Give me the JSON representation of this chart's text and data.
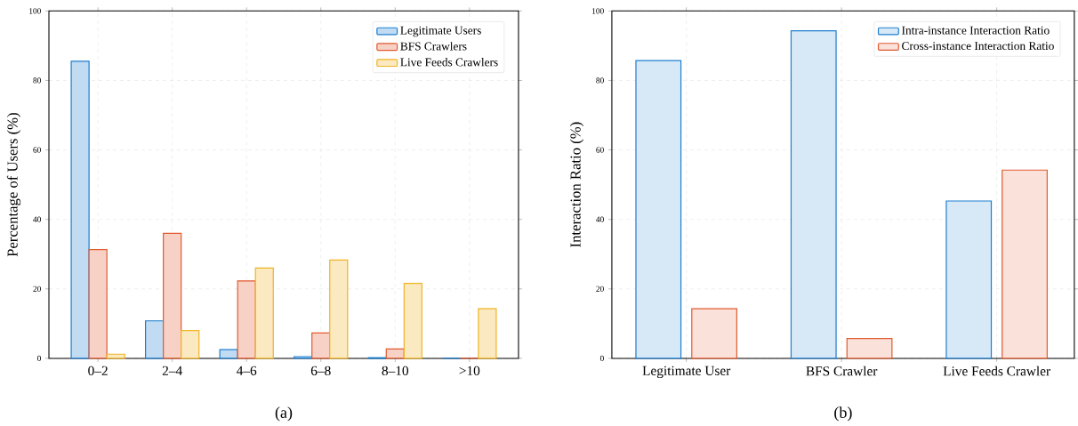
{
  "chart_data": [
    {
      "type": "bar",
      "categories": [
        "0–2",
        "2–4",
        "4–6",
        "6–8",
        "8–10",
        ">10"
      ],
      "ylabel": "Percentage of Users (%)",
      "ylim": [
        0,
        100
      ],
      "yticks": [
        0,
        20,
        40,
        60,
        80,
        100
      ],
      "grid": true,
      "legend": "top right",
      "annotations": [
        "(a)"
      ],
      "series": [
        {
          "name": "Legitimate Users",
          "color": "#1f7fcf",
          "values": [
            85.5,
            10.8,
            2.5,
            0.5,
            0.2,
            0
          ]
        },
        {
          "name": "BFS Crawlers",
          "color": "#e15b30",
          "values": [
            31.3,
            36.0,
            22.3,
            7.3,
            2.7,
            0
          ]
        },
        {
          "name": "Live Feeds Crawlers",
          "color": "#f0b323",
          "values": [
            1.2,
            8.0,
            26.0,
            28.3,
            21.6,
            14.3
          ]
        }
      ]
    },
    {
      "type": "bar",
      "categories": [
        "Legitimate User",
        "BFS Crawler",
        "Live Feeds Crawler"
      ],
      "ylabel": "Interaction Ratio (%)",
      "ylim": [
        0,
        100
      ],
      "yticks": [
        0,
        20,
        40,
        60,
        80,
        100
      ],
      "grid": true,
      "legend": "top right",
      "annotations": [
        "(b)"
      ],
      "series": [
        {
          "name": "Intra-instance Interaction Ratio",
          "color": "#1f7fcf",
          "values": [
            85.7,
            94.3,
            45.3
          ]
        },
        {
          "name": "Cross-instance Interaction Ratio",
          "color": "#e15b30",
          "values": [
            14.3,
            5.7,
            54.2
          ]
        }
      ]
    }
  ]
}
